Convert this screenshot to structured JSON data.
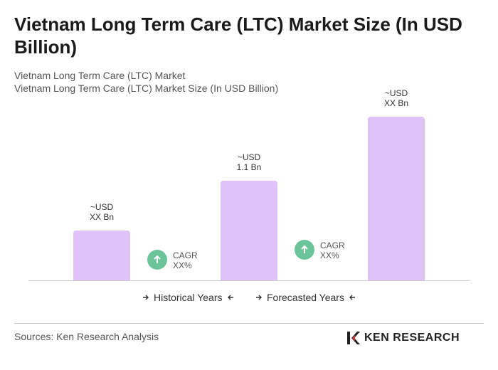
{
  "chart_data": {
    "type": "bar",
    "title": "Vietnam Long Term Care (LTC) Market Size (In USD Billion)",
    "subtitle": [
      "Vietnam Long Term Care (LTC) Market",
      "Vietnam Long Term Care (LTC) Market Size (In USD Billion)"
    ],
    "categories": [
      null,
      null,
      null
    ],
    "values": [
      0.55,
      1.1,
      1.81
    ],
    "value_labels": [
      "~USD\nXX Bn",
      "~USD\n1.1 Bn",
      "~USD\nXX Bn"
    ],
    "color": "#dfc3f8",
    "annotations": [
      "CAGR\nXX%",
      "CAGR\nXX%"
    ],
    "periods": [
      "Historical Years",
      "Forecasted Years"
    ],
    "source": "Sources: Ken Research Analysis",
    "brand": "KEN RESEARCH"
  }
}
